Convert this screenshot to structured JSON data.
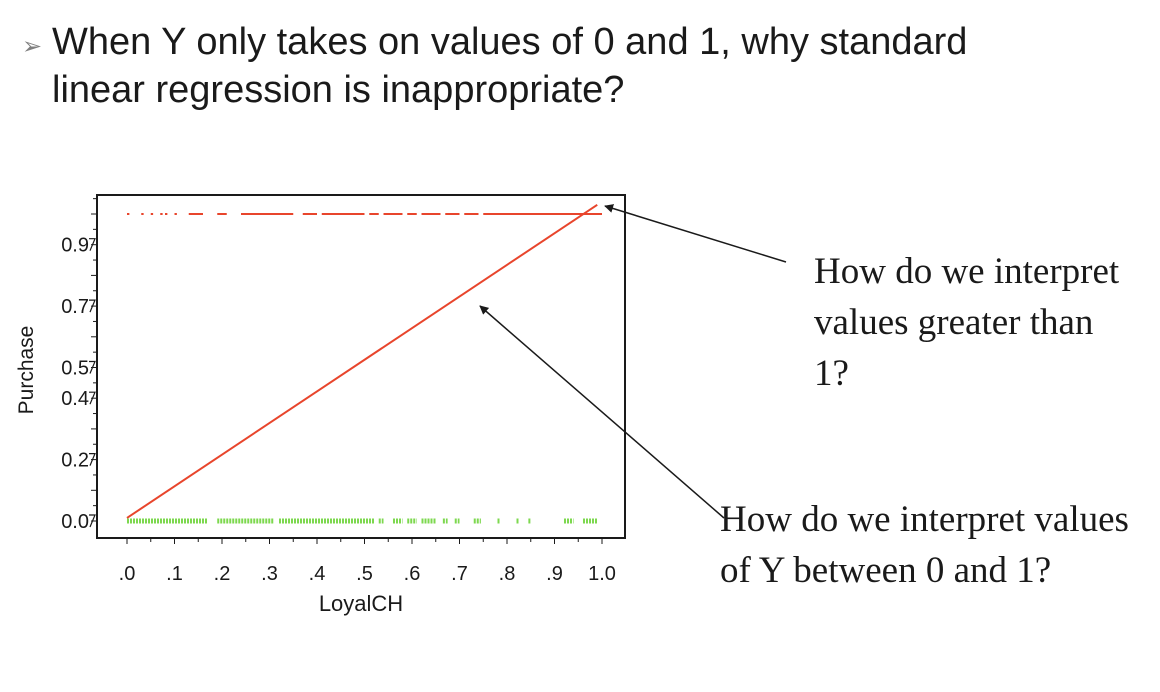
{
  "slide": {
    "bullet_glyph": "➢",
    "title": "When Y only takes on values of 0 and 1, why standard linear regression is inappropriate?"
  },
  "callouts": [
    {
      "text": "How do we interpret values greater than 1?"
    },
    {
      "text": "How do we interpret values of Y between 0 and 1?"
    }
  ],
  "chart_data": {
    "type": "scatter",
    "xlabel": "LoyalCH",
    "ylabel": "Purchase",
    "x_ticks": [
      ".0",
      ".1",
      ".2",
      ".3",
      ".4",
      ".5",
      ".6",
      ".7",
      ".8",
      ".9",
      "1.0"
    ],
    "y_ticks": [
      "0.0",
      "0.2",
      "0.4",
      "0.5",
      "0.7",
      "0.9"
    ],
    "y_tick_values": [
      0.0,
      0.2,
      0.4,
      0.5,
      0.7,
      0.9
    ],
    "xlim": [
      -0.05,
      1.05
    ],
    "ylim": [
      -0.05,
      1.03
    ],
    "fit_line": {
      "color": "#e8452c",
      "x": [
        0.0,
        0.99
      ],
      "y": [
        0.01,
        1.03
      ]
    },
    "series": [
      {
        "color": "#e8452c",
        "y": 1,
        "segments": [
          [
            0.0,
            0.005
          ],
          [
            0.03,
            0.035
          ],
          [
            0.05,
            0.055
          ],
          [
            0.07,
            0.075
          ],
          [
            0.08,
            0.085
          ],
          [
            0.1,
            0.105
          ],
          [
            0.13,
            0.16
          ],
          [
            0.19,
            0.21
          ],
          [
            0.24,
            0.35
          ],
          [
            0.37,
            0.4
          ],
          [
            0.41,
            0.5
          ],
          [
            0.51,
            0.53
          ],
          [
            0.54,
            0.58
          ],
          [
            0.59,
            0.61
          ],
          [
            0.62,
            0.66
          ],
          [
            0.67,
            0.7
          ],
          [
            0.71,
            0.74
          ],
          [
            0.75,
            1.0
          ]
        ]
      },
      {
        "color": "#7dd84f",
        "y": 0,
        "segments": [
          [
            0.0,
            0.17
          ],
          [
            0.19,
            0.31
          ],
          [
            0.32,
            0.52
          ],
          [
            0.53,
            0.54
          ],
          [
            0.56,
            0.58
          ],
          [
            0.59,
            0.61
          ],
          [
            0.62,
            0.65
          ],
          [
            0.665,
            0.675
          ],
          [
            0.69,
            0.7
          ],
          [
            0.73,
            0.745
          ],
          [
            0.78,
            0.785
          ],
          [
            0.82,
            0.825
          ],
          [
            0.845,
            0.85
          ],
          [
            0.92,
            0.94
          ],
          [
            0.96,
            0.99
          ]
        ]
      }
    ]
  }
}
